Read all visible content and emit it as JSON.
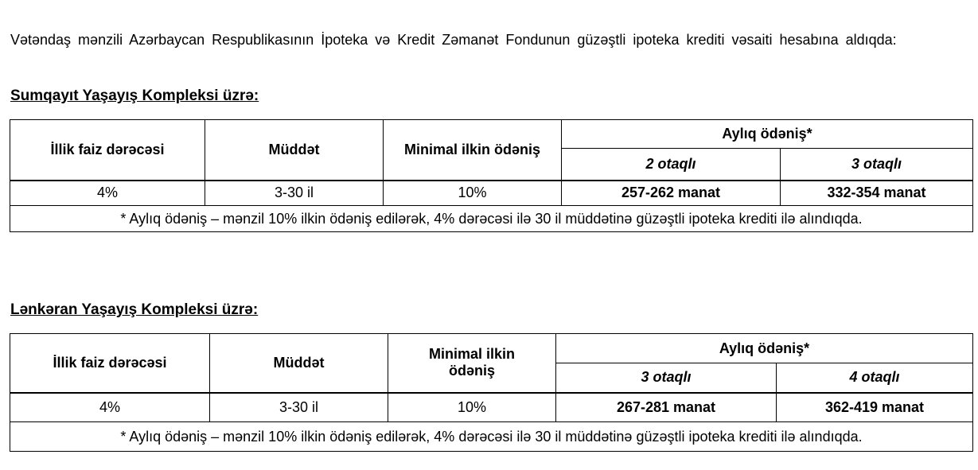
{
  "intro": "Vətəndaş mənzili Azərbaycan Respublikasının İpoteka və Kredit Zəmanət Fondunun güzəştli ipoteka krediti vəsaiti hesabına aldıqda:",
  "sections": [
    {
      "heading": "Sumqayıt Yaşayış Kompleksi üzrə:",
      "headers": {
        "rate": "İllik faiz dərəcəsi",
        "term": "Müddət",
        "down": "Minimal ilkin ödəniş",
        "monthly": "Aylıq ödəniş*",
        "sub1": "2 otaqlı",
        "sub2": "3 otaqlı"
      },
      "row": {
        "rate": "4%",
        "term": "3-30 il",
        "down": "10%",
        "v1": "257-262 manat",
        "v2": "332-354 manat"
      },
      "note": "* Aylıq ödəniş – mənzil 10% ilkin ödəniş edilərək, 4% dərəcəsi ilə 30 il müddətinə güzəştli ipoteka krediti ilə alındıqda."
    },
    {
      "heading": "Lənkəran Yaşayış Kompleksi üzrə:",
      "headers": {
        "rate": "İllik faiz dərəcəsi",
        "term": "Müddət",
        "down": "Minimal ilkin ödəniş",
        "monthly": "Aylıq ödəniş*",
        "sub1": "3 otaqlı",
        "sub2": "4 otaqlı"
      },
      "row": {
        "rate": "4%",
        "term": "3-30 il",
        "down": "10%",
        "v1": "267-281 manat",
        "v2": "362-419 manat"
      },
      "note": "* Aylıq ödəniş – mənzil 10% ilkin ödəniş edilərək, 4% dərəcəsi ilə 30 il müddətinə güzəştli ipoteka krediti ilə alındıqda."
    }
  ]
}
